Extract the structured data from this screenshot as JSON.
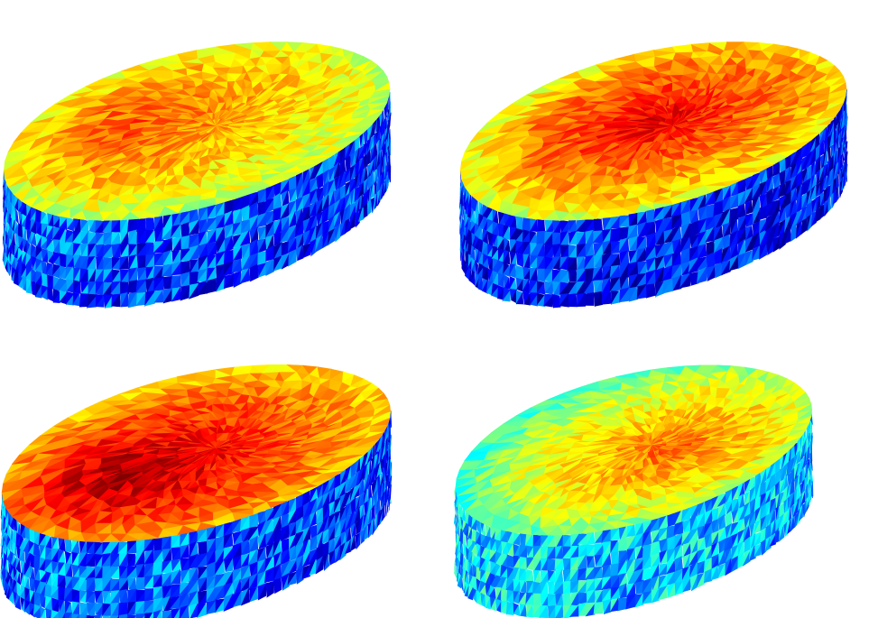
{
  "colormap": "jet",
  "colormap_stops": [
    "#00008f",
    "#0000ff",
    "#0080ff",
    "#00ffff",
    "#80ff80",
    "#ffff00",
    "#ff8000",
    "#ff0000",
    "#800000"
  ],
  "panels": [
    {
      "id": "top-left",
      "top_peak": 0.8,
      "top_base": 0.6,
      "hot_u": 0.3,
      "hot_v": 0.4,
      "side_mean": 0.22
    },
    {
      "id": "top-right",
      "top_peak": 0.9,
      "top_base": 0.62,
      "hot_u": 0.45,
      "hot_v": 0.45,
      "side_mean": 0.18
    },
    {
      "id": "bottom-left",
      "top_peak": 0.97,
      "top_base": 0.7,
      "hot_u": 0.3,
      "hot_v": 0.55,
      "side_mean": 0.24
    },
    {
      "id": "bottom-right",
      "top_peak": 0.78,
      "top_base": 0.5,
      "hot_u": 0.55,
      "hot_v": 0.55,
      "side_mean": 0.35
    }
  ]
}
